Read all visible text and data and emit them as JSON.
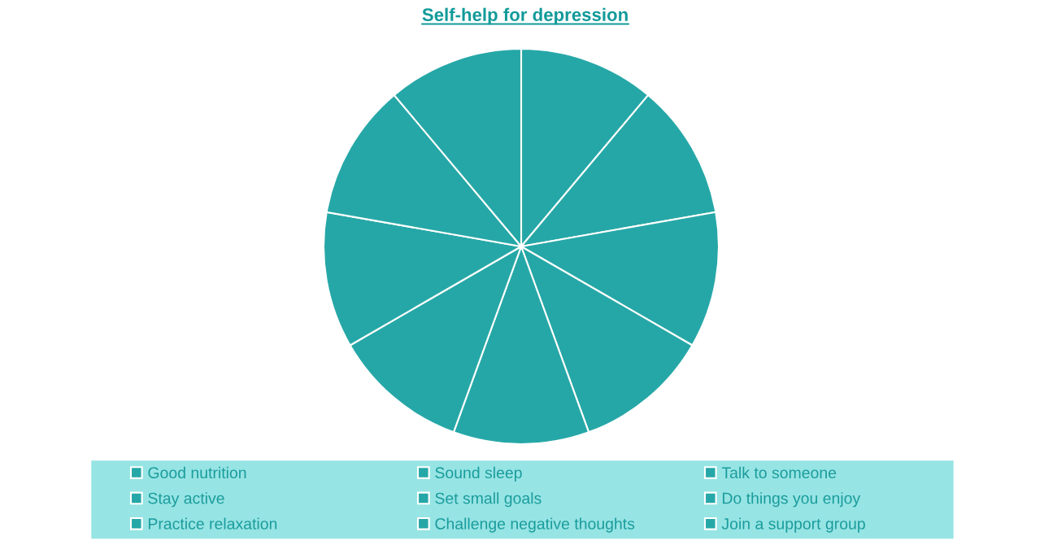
{
  "chart_data": {
    "type": "pie",
    "title": "Self-help for depression",
    "categories": [
      "Good nutrition",
      "Sound sleep",
      "Talk to someone",
      "Stay active",
      "Set small goals",
      "Do things you enjoy",
      "Practice relaxation",
      "Challenge negative thoughts",
      "Join a support group"
    ],
    "values": [
      11.1,
      11.1,
      11.1,
      11.1,
      11.1,
      11.1,
      11.1,
      11.1,
      11.1
    ],
    "colors": [
      "#26a7a7",
      "#26a7a7",
      "#26a7a7",
      "#26a7a7",
      "#26a7a7",
      "#26a7a7",
      "#26a7a7",
      "#26a7a7",
      "#26a7a7"
    ],
    "legend": "bottom"
  }
}
